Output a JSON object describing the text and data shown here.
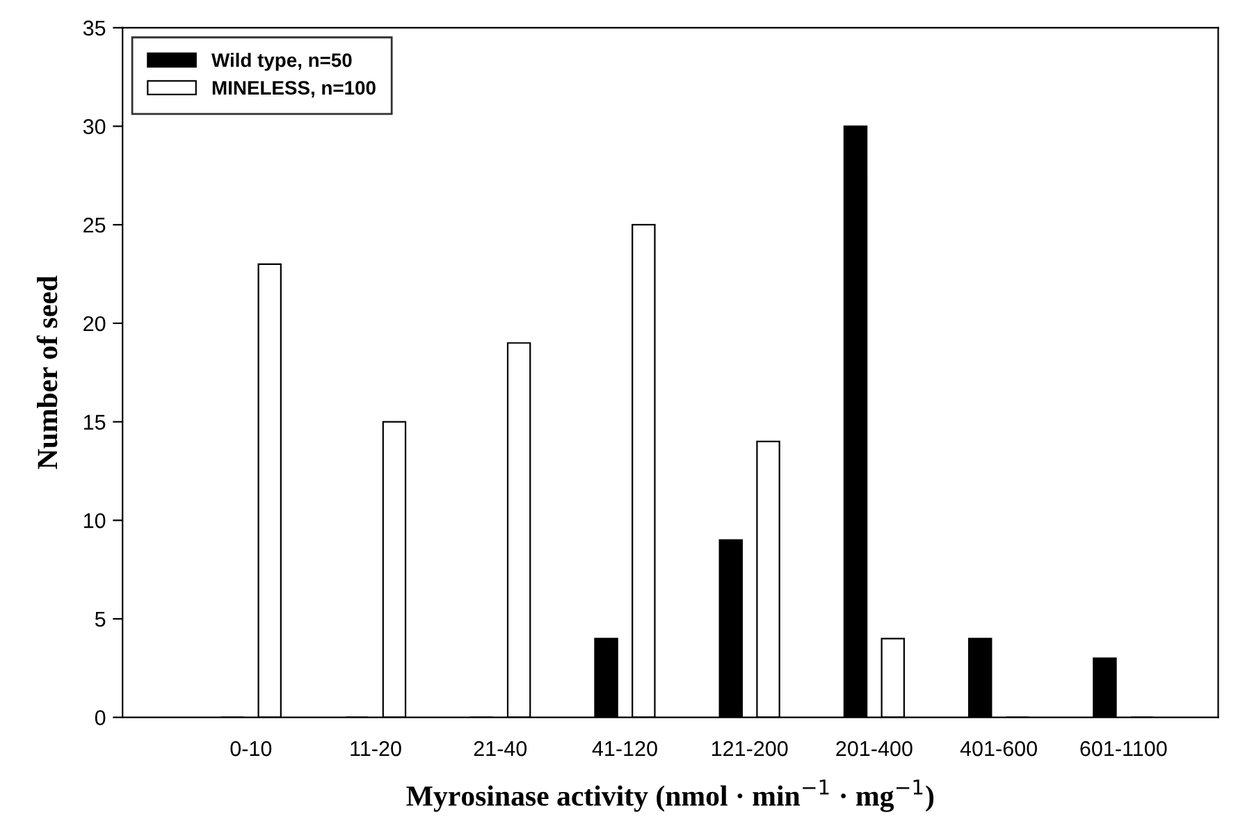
{
  "chart_data": {
    "type": "bar",
    "xlabel": "Myrosinase activity (nmol · min$^{−1}$ · mg$^{−1}$)",
    "ylabel": "Number of seed",
    "categories": [
      "0-10",
      "11-20",
      "21-40",
      "41-120",
      "121-200",
      "201-400",
      "401-600",
      "601-1100"
    ],
    "series": [
      {
        "name": "Wild type, n=50",
        "color": "#000000",
        "values": [
          0,
          0,
          0,
          4,
          9,
          30,
          4,
          3
        ]
      },
      {
        "name": "MINELESS, n=100",
        "color": "#ffffff",
        "values": [
          23,
          15,
          19,
          25,
          14,
          4,
          0,
          0
        ]
      }
    ],
    "ylim": [
      0,
      35
    ],
    "yticks": [
      0,
      5,
      10,
      15,
      20,
      25,
      30,
      35
    ],
    "grid": false,
    "legend": "top left"
  }
}
